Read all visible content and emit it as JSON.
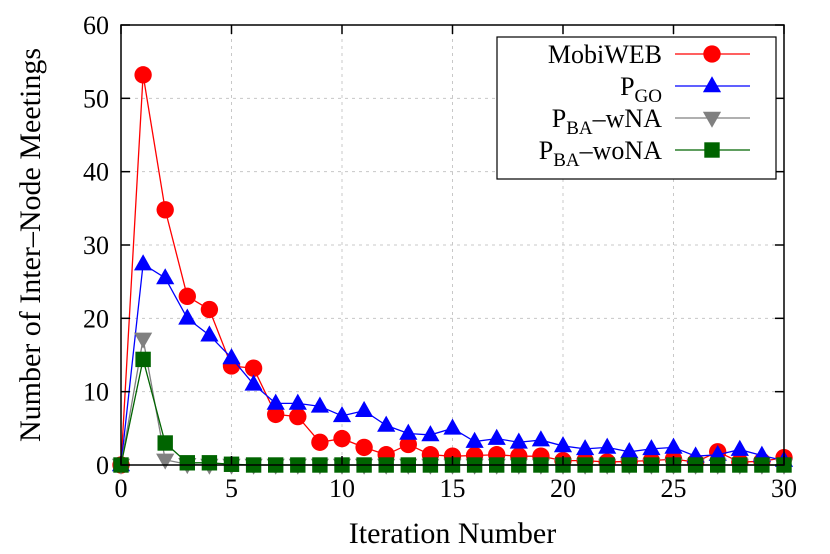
{
  "chart_data": {
    "type": "line",
    "title": "",
    "xlabel": "Iteration Number",
    "ylabel": "Number of Inter–Node Meetings",
    "xlim": [
      0,
      30
    ],
    "ylim": [
      0,
      60
    ],
    "xticks": [
      0,
      5,
      10,
      15,
      20,
      25,
      30
    ],
    "yticks": [
      0,
      10,
      20,
      30,
      40,
      50,
      60
    ],
    "grid": true,
    "legend_position": "top-right",
    "series": [
      {
        "name_main": "MobiWEB",
        "name_sub": "",
        "name_rest": "",
        "color": "#ff0000",
        "marker": "circle",
        "x": [
          0,
          1,
          2,
          3,
          4,
          5,
          6,
          7,
          8,
          9,
          10,
          11,
          12,
          13,
          14,
          15,
          16,
          17,
          18,
          19,
          20,
          21,
          22,
          23,
          24,
          25,
          26,
          27,
          28,
          29,
          30
        ],
        "y": [
          0,
          53.2,
          34.8,
          23,
          21.2,
          13.5,
          13.2,
          6.9,
          6.6,
          3.1,
          3.6,
          2.4,
          1.4,
          2.8,
          1.4,
          1.2,
          1.3,
          1.4,
          1.2,
          1.2,
          0.6,
          0.6,
          0.4,
          0.5,
          0.6,
          0.8,
          0.4,
          1.8,
          0.4,
          0.5,
          1.0
        ]
      },
      {
        "name_main": "P",
        "name_sub": "GO",
        "name_rest": "",
        "color": "#0000ff",
        "marker": "triangle-up",
        "x": [
          0,
          1,
          2,
          3,
          4,
          5,
          6,
          7,
          8,
          9,
          10,
          11,
          12,
          13,
          14,
          15,
          16,
          17,
          18,
          19,
          20,
          21,
          22,
          23,
          24,
          25,
          26,
          27,
          28,
          29,
          30
        ],
        "y": [
          0,
          27.4,
          25.5,
          20,
          17.7,
          14.6,
          11,
          8.4,
          8.4,
          8,
          6.7,
          7.4,
          5.4,
          4.3,
          4.1,
          5,
          3.2,
          3.6,
          3.1,
          3.4,
          2.6,
          2.2,
          2.4,
          1.8,
          2.2,
          2.4,
          1.2,
          1.4,
          2.1,
          1.3,
          0.6
        ]
      },
      {
        "name_main": "P",
        "name_sub": "BA",
        "name_rest": "–wNA",
        "color": "#808080",
        "marker": "triangle-down",
        "x": [
          0,
          1,
          2,
          3,
          4,
          5,
          6,
          7,
          8,
          9,
          10,
          11,
          12,
          13,
          14,
          15,
          16,
          17,
          18,
          19,
          20,
          21,
          22,
          23,
          24,
          25,
          26,
          27,
          28,
          29,
          30
        ],
        "y": [
          0,
          17.2,
          0.7,
          0.1,
          0,
          0,
          0,
          0,
          0,
          0,
          0,
          0,
          0,
          0,
          0,
          0,
          0,
          0,
          0,
          0,
          0,
          0,
          0,
          0,
          0,
          0,
          0,
          0,
          0,
          0,
          0
        ]
      },
      {
        "name_main": "P",
        "name_sub": "BA",
        "name_rest": "–woNA",
        "color": "#006400",
        "marker": "square",
        "x": [
          0,
          1,
          2,
          3,
          4,
          5,
          6,
          7,
          8,
          9,
          10,
          11,
          12,
          13,
          14,
          15,
          16,
          17,
          18,
          19,
          20,
          21,
          22,
          23,
          24,
          25,
          26,
          27,
          28,
          29,
          30
        ],
        "y": [
          0,
          14.4,
          3.0,
          0.3,
          0.3,
          0.1,
          0,
          0,
          0,
          0,
          0,
          0,
          0,
          0,
          0,
          0,
          0,
          0,
          0,
          0,
          0,
          0,
          0,
          0,
          0,
          0,
          0,
          0,
          0,
          0,
          0
        ]
      }
    ]
  }
}
